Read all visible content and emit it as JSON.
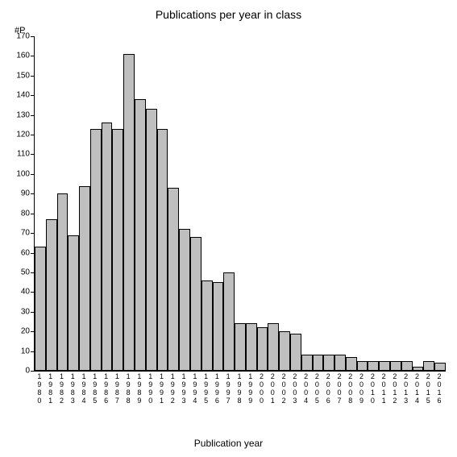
{
  "chart": {
    "type": "bar",
    "title": "Publications per year in class",
    "y_axis_label": "#P",
    "x_axis_label": "Publication year",
    "background_color": "#ffffff",
    "bar_fill_color": "#bfbfbf",
    "bar_border_color": "#000000",
    "axis_color": "#000000",
    "text_color": "#000000",
    "title_fontsize": 14,
    "axis_label_fontsize": 12,
    "tick_label_fontsize": 10,
    "ylim": [
      0,
      170
    ],
    "ytick_step": 10,
    "yticks": [
      0,
      10,
      20,
      30,
      40,
      50,
      60,
      70,
      80,
      90,
      100,
      110,
      120,
      130,
      140,
      150,
      160,
      170
    ],
    "categories": [
      "1980",
      "1981",
      "1982",
      "1983",
      "1984",
      "1985",
      "1986",
      "1987",
      "1988",
      "1989",
      "1990",
      "1991",
      "1992",
      "1993",
      "1994",
      "1995",
      "1996",
      "1997",
      "1998",
      "1999",
      "2000",
      "2001",
      "2002",
      "2003",
      "2004",
      "2005",
      "2006",
      "2007",
      "2008",
      "2009",
      "2010",
      "2011",
      "2012",
      "2013",
      "2014",
      "2015",
      "2016"
    ],
    "values": [
      63,
      77,
      90,
      69,
      94,
      123,
      126,
      123,
      161,
      138,
      133,
      123,
      93,
      72,
      68,
      46,
      45,
      50,
      24,
      24,
      22,
      24,
      20,
      19,
      8,
      8,
      8,
      8,
      7,
      5,
      5,
      5,
      5,
      5,
      2,
      5,
      4
    ]
  }
}
